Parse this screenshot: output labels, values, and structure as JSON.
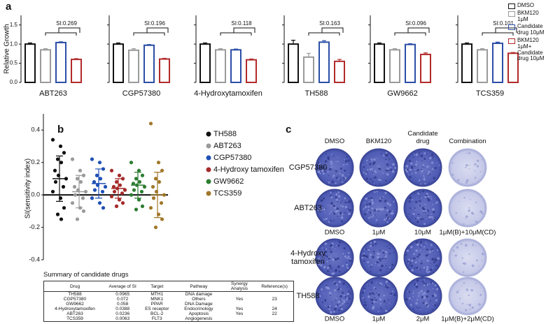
{
  "panel_labels": [
    "a",
    "b",
    "c"
  ],
  "legend_a": [
    {
      "name": "DMSO",
      "color": "#111111"
    },
    {
      "name": "BKM120 1μM",
      "color": "#9a9a9a"
    },
    {
      "name": "Candidate drug 10μM",
      "color": "#2b4ea6"
    },
    {
      "name": "BKM120 1μM+ Candidate drug 10μM",
      "color": "#b22a2a"
    }
  ],
  "chart_data": [
    {
      "type": "bar",
      "title": "ABT263",
      "annotation": "SI:0.269",
      "ylabel": "Relative Growth",
      "values": [
        1.0,
        0.85,
        1.04,
        0.6
      ],
      "errors": [
        0.03,
        0.03,
        0.02,
        0.02
      ],
      "ylim": [
        0,
        1.75
      ],
      "yticks": [
        {
          "value": 0,
          "label": "0.0"
        },
        {
          "value": 0.5,
          "label": "0.5"
        },
        {
          "value": 1,
          "label": "1.0"
        },
        {
          "value": 1.5,
          "label": "1.5"
        }
      ]
    },
    {
      "type": "bar",
      "title": "CGP57380",
      "annotation": "SI:0.196",
      "values": [
        1.0,
        0.84,
        0.97,
        0.61
      ],
      "errors": [
        0.03,
        0.04,
        0.02,
        0.02
      ],
      "ylim": [
        0,
        1.75
      ],
      "yticks": [
        0,
        0.5,
        1,
        1.5
      ]
    },
    {
      "type": "bar",
      "title": "4-Hydroxytamoxifen",
      "annotation": "SI:0.118",
      "values": [
        1.0,
        0.85,
        0.85,
        0.59
      ],
      "errors": [
        0.03,
        0.03,
        0.02,
        0.02
      ],
      "ylim": [
        0,
        1.75
      ],
      "yticks": [
        0,
        0.5,
        1,
        1.5
      ]
    },
    {
      "type": "bar",
      "title": "TH588",
      "annotation": "SI:0.163",
      "values": [
        1.0,
        0.66,
        1.05,
        0.55
      ],
      "errors": [
        0.1,
        0.1,
        0.04,
        0.05
      ],
      "ylim": [
        0,
        1.75
      ],
      "yticks": [
        0,
        0.5,
        1,
        1.5
      ]
    },
    {
      "type": "bar",
      "title": "GW9662",
      "annotation": "SI:0.096",
      "values": [
        1.0,
        0.85,
        0.99,
        0.73
      ],
      "errors": [
        0.03,
        0.03,
        0.02,
        0.04
      ],
      "ylim": [
        0,
        1.75
      ],
      "yticks": [
        0,
        0.5,
        1,
        1.5
      ]
    },
    {
      "type": "bar",
      "title": "TCS359",
      "annotation": "SI:0.101",
      "values": [
        1.0,
        0.85,
        1.02,
        0.76
      ],
      "errors": [
        0.03,
        0.03,
        0.03,
        0.02
      ],
      "ylim": [
        0,
        1.75
      ],
      "yticks": [
        0,
        0.5,
        1,
        1.5
      ]
    },
    {
      "type": "scatter",
      "ylabel": "SI(sensitivity index)",
      "ylim": [
        -0.4,
        0.5
      ],
      "yticks": [
        {
          "value": -0.4,
          "label": "-0.4"
        },
        {
          "value": -0.2,
          "label": "-0.2"
        },
        {
          "value": 0,
          "label": "0.0"
        },
        {
          "value": 0.2,
          "label": "0.2"
        },
        {
          "value": 0.4,
          "label": "0.4"
        }
      ],
      "series": [
        {
          "name": "TH588",
          "color": "#111111",
          "mean": 0.1,
          "sd": 0.14,
          "values": [
            0.34,
            0.3,
            0.26,
            0.22,
            0.2,
            0.15,
            0.12,
            0.1,
            0.08,
            0.05,
            0.02,
            -0.02,
            -0.08,
            -0.12,
            -0.15
          ]
        },
        {
          "name": "ABT263",
          "color": "#9a9a9a",
          "mean": 0.02,
          "sd": 0.1,
          "values": [
            0.22,
            0.15,
            0.12,
            0.1,
            0.08,
            0.05,
            0.03,
            0.02,
            0,
            -0.02,
            -0.05,
            -0.08,
            -0.1,
            -0.15
          ]
        },
        {
          "name": "CGP57380",
          "color": "#1f4fb5",
          "mean": 0.07,
          "sd": 0.09,
          "values": [
            0.22,
            0.2,
            0.16,
            0.12,
            0.1,
            0.08,
            0.06,
            0.05,
            0.03,
            0.02,
            -0.02,
            -0.05,
            -0.08
          ]
        },
        {
          "name": "4-Hydroxy tamoxifen",
          "color": "#a52a2a",
          "mean": 0.04,
          "sd": 0.06,
          "values": [
            0.15,
            0.12,
            0.1,
            0.08,
            0.06,
            0.05,
            0.04,
            0.03,
            0.02,
            0.01,
            -0.01,
            -0.03,
            -0.05,
            -0.07
          ]
        },
        {
          "name": "GW9662",
          "color": "#2e7d32",
          "mean": 0.06,
          "sd": 0.08,
          "values": [
            0.2,
            0.15,
            0.12,
            0.1,
            0.08,
            0.07,
            0.06,
            0.05,
            0.03,
            0.02,
            0,
            -0.03,
            -0.07,
            -0.09
          ]
        },
        {
          "name": "TCS359",
          "color": "#a0782a",
          "mean": 0.0,
          "sd": 0.14,
          "values": [
            0.44,
            0.2,
            0.15,
            0.1,
            0.08,
            0.05,
            0.02,
            0,
            -0.02,
            -0.05,
            -0.08,
            -0.12,
            -0.15,
            -0.2
          ]
        }
      ]
    }
  ],
  "table": {
    "title": "Summary of candidate drugs",
    "headers": [
      "Drug",
      "Average of SI",
      "Target",
      "Pathway",
      "Synergy Analysis",
      "Reference(s)"
    ],
    "rows": [
      {
        "drug": "TH588",
        "si": "0.0965",
        "target": "MTH1",
        "pathway": "DNA damage"
      },
      {
        "drug": "CGP57380",
        "si": "0.072",
        "target": "MNK1",
        "pathway": "Others",
        "synergy": "Yes",
        "reference": "23"
      },
      {
        "drug": "GW9662",
        "si": "0.058",
        "target": "PPAR",
        "pathway": "DNA Damage"
      },
      {
        "drug": "4-Hydroxytamoxifen",
        "si": "0.0388",
        "target": "ES receptor",
        "pathway": "Endocrinology",
        "synergy": "Yes",
        "reference": "24"
      },
      {
        "drug": "ABT263",
        "si": "0.0236",
        "target": "BCL-2",
        "pathway": "Apoptosis",
        "synergy": "Yes",
        "reference": "22"
      },
      {
        "drug": "TCS359",
        "si": "0.0063",
        "target": "FLT3",
        "pathway": "Angiogenesis"
      }
    ]
  },
  "colony": {
    "column_headers": [
      "DMSO",
      "BKM120",
      "Candidate drug",
      "Combination"
    ],
    "row_labels": [
      "CGP57380",
      "ABT263",
      "4-Hydroxy tamoxifen",
      "TH588"
    ],
    "dose_labels": [
      [
        "DMSO",
        "1μM",
        "10μM",
        "1μM(B)+10μM(CD)"
      ],
      [
        "DMSO",
        "1μM",
        "2μM",
        "1μM(B)+2μM(CD)"
      ]
    ]
  }
}
